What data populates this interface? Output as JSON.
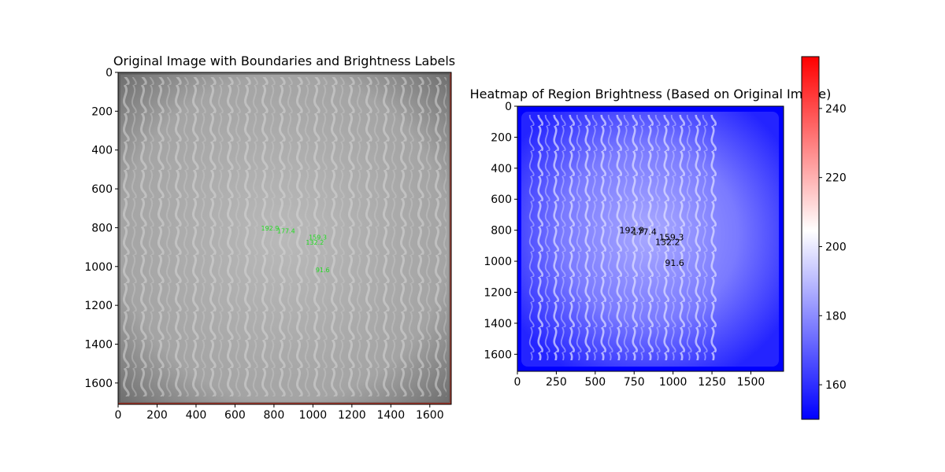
{
  "chart_data": [
    {
      "type": "image",
      "title": "Original Image with Boundaries and Brightness Labels",
      "xlim": [
        0,
        1710
      ],
      "ylim": [
        1710,
        0
      ],
      "xticks": [
        0,
        200,
        400,
        600,
        800,
        1000,
        1200,
        1400,
        1600
      ],
      "yticks": [
        0,
        200,
        400,
        600,
        800,
        1000,
        1200,
        1400,
        1600
      ],
      "colormap": "gray",
      "annotation_color": "#22dd22",
      "annotations": [
        {
          "label": "192.9",
          "x": 780,
          "y": 815
        },
        {
          "label": "177.4",
          "x": 862,
          "y": 828
        },
        {
          "label": "159.3",
          "x": 1025,
          "y": 862
        },
        {
          "label": "132.2",
          "x": 1010,
          "y": 888
        },
        {
          "label": "91.6",
          "x": 1050,
          "y": 1030
        }
      ]
    },
    {
      "type": "heatmap",
      "title": "Heatmap of Region Brightness (Based on Original Image)",
      "xlim": [
        0,
        1710
      ],
      "ylim": [
        1710,
        0
      ],
      "xticks": [
        0,
        250,
        500,
        750,
        1000,
        1250,
        1500
      ],
      "yticks": [
        0,
        200,
        400,
        600,
        800,
        1000,
        1200,
        1400,
        1600
      ],
      "colormap": "bwr",
      "colorbar": {
        "range": [
          150,
          255
        ],
        "ticks": [
          160,
          180,
          200,
          220,
          240
        ],
        "colors": [
          "#0000ff",
          "#ffffff",
          "#ff0000"
        ]
      },
      "annotation_color": "#000000",
      "annotations": [
        {
          "label": "192.9",
          "x": 735,
          "y": 820
        },
        {
          "label": "177.4",
          "x": 815,
          "y": 830
        },
        {
          "label": "159.3",
          "x": 990,
          "y": 865
        },
        {
          "label": "132.2",
          "x": 965,
          "y": 895
        },
        {
          "label": "91.6",
          "x": 1010,
          "y": 1030
        }
      ]
    }
  ]
}
